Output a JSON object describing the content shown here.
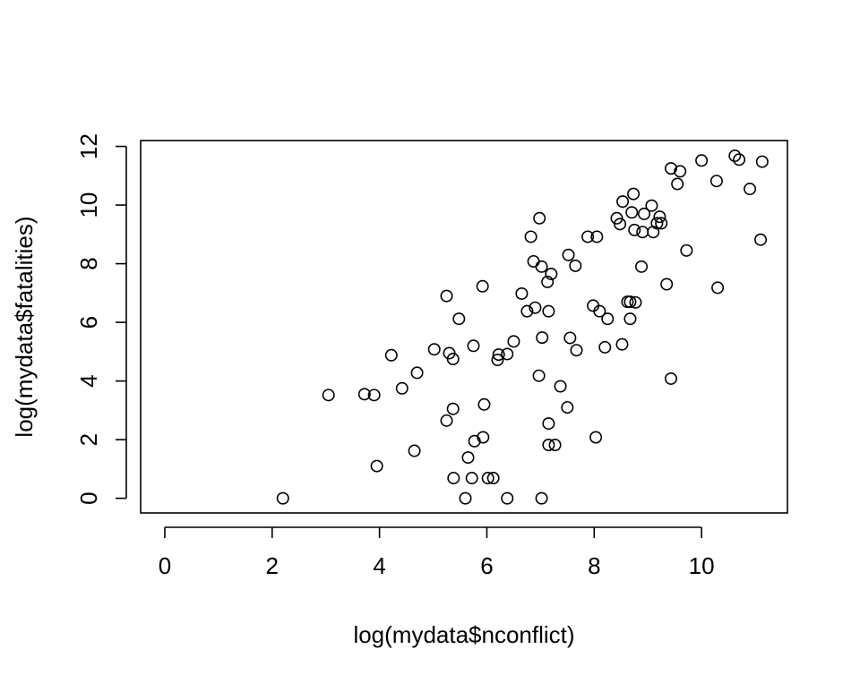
{
  "chart_data": {
    "type": "scatter",
    "title": "",
    "xlabel": "log(mydata$nconflict)",
    "ylabel": "log(mydata$fatalities)",
    "xlim": [
      -0.45,
      11.6
    ],
    "ylim": [
      -0.5,
      12.2
    ],
    "xticks": [
      "0",
      "2",
      "4",
      "6",
      "8",
      "10"
    ],
    "yticks": [
      "0",
      "2",
      "4",
      "6",
      "8",
      "10",
      "12"
    ],
    "grid": false,
    "marker": "open-circle",
    "marker_color": "#000000",
    "points": [
      [
        2.2,
        0.0
      ],
      [
        3.05,
        3.52
      ],
      [
        3.72,
        3.55
      ],
      [
        3.9,
        3.52
      ],
      [
        3.95,
        1.1
      ],
      [
        4.22,
        4.88
      ],
      [
        4.42,
        3.75
      ],
      [
        4.65,
        1.62
      ],
      [
        4.7,
        4.28
      ],
      [
        5.02,
        5.08
      ],
      [
        5.25,
        6.9
      ],
      [
        5.25,
        2.65
      ],
      [
        5.3,
        4.95
      ],
      [
        5.37,
        4.75
      ],
      [
        5.37,
        3.05
      ],
      [
        5.38,
        0.69
      ],
      [
        5.48,
        6.12
      ],
      [
        5.6,
        0.0
      ],
      [
        5.65,
        1.39
      ],
      [
        5.72,
        0.69
      ],
      [
        5.75,
        5.2
      ],
      [
        5.77,
        1.95
      ],
      [
        5.92,
        7.23
      ],
      [
        5.93,
        2.08
      ],
      [
        5.95,
        3.2
      ],
      [
        6.02,
        0.69
      ],
      [
        6.12,
        0.69
      ],
      [
        6.2,
        4.72
      ],
      [
        6.22,
        4.9
      ],
      [
        6.38,
        4.92
      ],
      [
        6.38,
        0.0
      ],
      [
        6.5,
        5.35
      ],
      [
        6.65,
        6.98
      ],
      [
        6.75,
        6.38
      ],
      [
        6.82,
        8.92
      ],
      [
        6.87,
        8.08
      ],
      [
        6.9,
        6.5
      ],
      [
        6.97,
        4.18
      ],
      [
        6.98,
        9.55
      ],
      [
        7.02,
        7.9
      ],
      [
        7.02,
        0.0
      ],
      [
        7.03,
        5.48
      ],
      [
        7.13,
        7.38
      ],
      [
        7.15,
        1.82
      ],
      [
        7.15,
        2.55
      ],
      [
        7.15,
        6.38
      ],
      [
        7.2,
        7.65
      ],
      [
        7.27,
        1.82
      ],
      [
        7.37,
        3.82
      ],
      [
        7.5,
        3.1
      ],
      [
        7.52,
        8.3
      ],
      [
        7.55,
        5.47
      ],
      [
        7.65,
        7.93
      ],
      [
        7.67,
        5.05
      ],
      [
        7.88,
        8.92
      ],
      [
        7.98,
        6.57
      ],
      [
        8.03,
        2.08
      ],
      [
        8.05,
        8.92
      ],
      [
        8.1,
        6.38
      ],
      [
        8.2,
        5.15
      ],
      [
        8.25,
        6.12
      ],
      [
        8.42,
        9.55
      ],
      [
        8.48,
        9.35
      ],
      [
        8.52,
        5.25
      ],
      [
        8.53,
        10.12
      ],
      [
        8.62,
        6.7
      ],
      [
        8.67,
        6.12
      ],
      [
        8.67,
        6.7
      ],
      [
        8.7,
        9.75
      ],
      [
        8.73,
        10.38
      ],
      [
        8.75,
        9.15
      ],
      [
        8.77,
        6.68
      ],
      [
        8.88,
        7.9
      ],
      [
        8.9,
        9.08
      ],
      [
        8.93,
        9.7
      ],
      [
        9.07,
        9.98
      ],
      [
        9.1,
        9.08
      ],
      [
        9.17,
        9.38
      ],
      [
        9.22,
        9.6
      ],
      [
        9.25,
        9.38
      ],
      [
        9.35,
        7.3
      ],
      [
        9.43,
        11.25
      ],
      [
        9.43,
        4.08
      ],
      [
        9.55,
        10.72
      ],
      [
        9.6,
        11.15
      ],
      [
        9.72,
        8.45
      ],
      [
        10.0,
        11.52
      ],
      [
        10.28,
        10.82
      ],
      [
        10.3,
        7.18
      ],
      [
        10.62,
        11.68
      ],
      [
        10.7,
        11.55
      ],
      [
        10.9,
        10.55
      ],
      [
        11.1,
        8.82
      ],
      [
        11.13,
        11.48
      ]
    ]
  }
}
